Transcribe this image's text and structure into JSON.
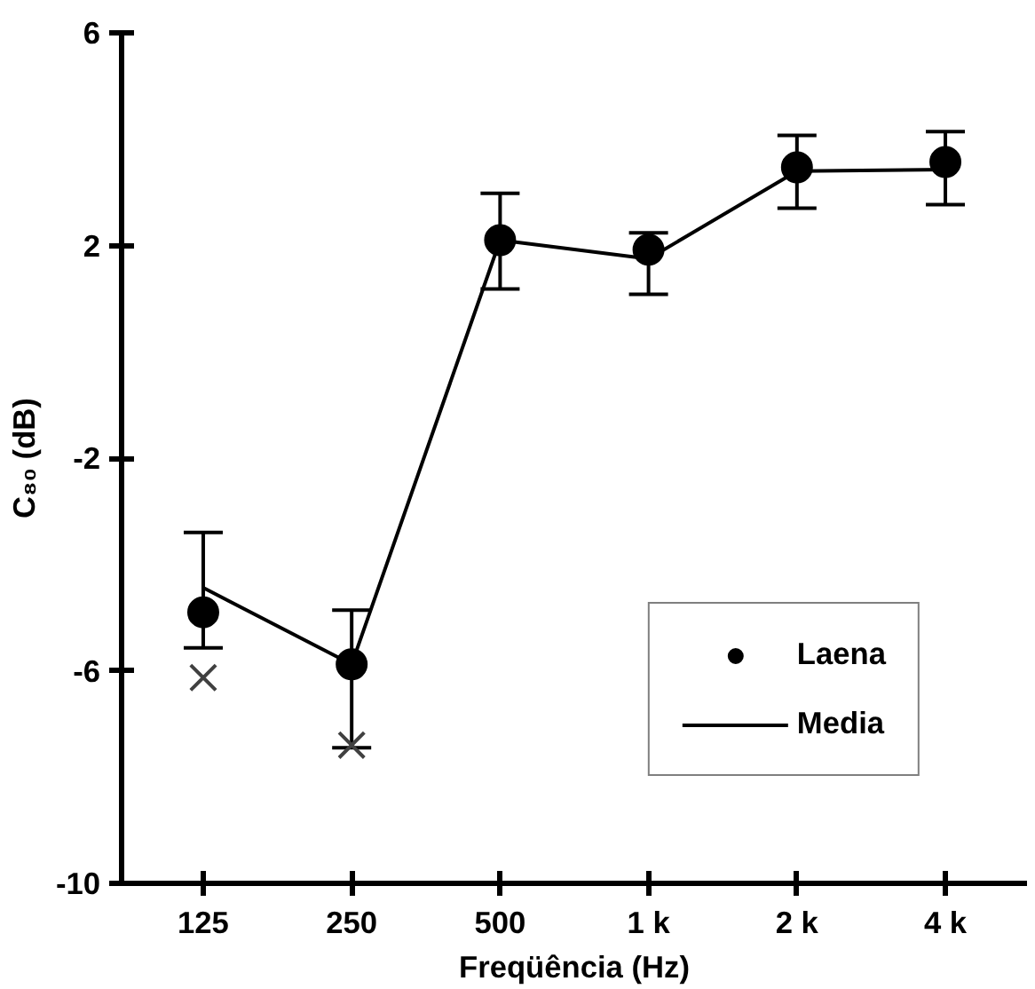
{
  "chart_data": {
    "type": "line",
    "xlabel": "Freqüência (Hz)",
    "ylabel": "C₈₀ (dB)",
    "categories": [
      "125",
      "250",
      "500",
      "1 k",
      "2 k",
      "4 k"
    ],
    "series": [
      {
        "name": "Laena",
        "type": "scatter",
        "color": "#000000",
        "marker": "circle",
        "values": [
          -4.9,
          -5.88,
          2.1,
          1.92,
          3.47,
          3.57
        ],
        "errors": [
          [
            -5.57,
            -3.4
          ],
          [
            -7.45,
            -4.86
          ],
          [
            1.18,
            2.98
          ],
          [
            1.08,
            2.24
          ],
          [
            2.7,
            4.07
          ],
          [
            2.77,
            4.14
          ]
        ]
      },
      {
        "name": "Media",
        "color": "#000000",
        "values": [
          -4.44,
          -5.88,
          2.1,
          1.75,
          3.4,
          3.43
        ]
      },
      {
        "type": "scatter",
        "color": "#404040",
        "marker": "cross",
        "values": [
          -6.13,
          -7.4,
          null,
          null,
          null,
          null
        ]
      }
    ],
    "ylim": [
      -10,
      6
    ],
    "yticks": [
      -10,
      -6,
      -2,
      2,
      6
    ],
    "grid": false,
    "legend": "bottom right"
  }
}
